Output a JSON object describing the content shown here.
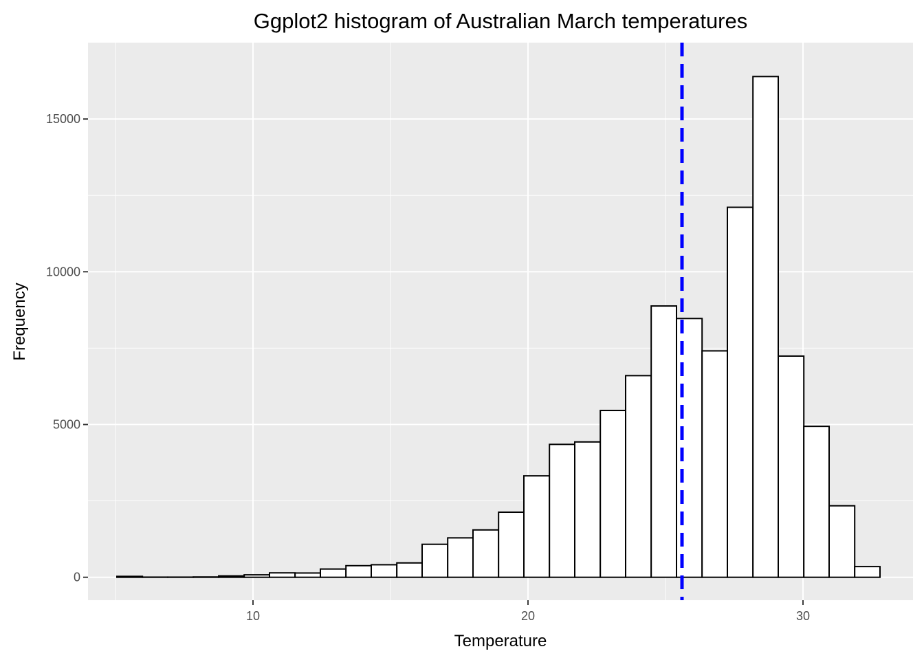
{
  "chart_data": {
    "type": "bar",
    "title": "Ggplot2 histogram of Australian March temperatures",
    "xlabel": "Temperature",
    "ylabel": "Frequency",
    "xlim": [
      4.0,
      34.0
    ],
    "ylim": [
      -750,
      17500
    ],
    "x_ticks": [
      10,
      20,
      30
    ],
    "y_ticks": [
      0,
      5000,
      10000,
      15000
    ],
    "x_tick_labels": [
      "10",
      "20",
      "30"
    ],
    "y_tick_labels": [
      "0",
      "5000",
      "10000",
      "15000"
    ],
    "bin_edges": [
      5.05,
      5.98,
      6.9,
      7.83,
      8.75,
      9.68,
      10.6,
      11.53,
      12.45,
      13.38,
      14.3,
      15.23,
      16.15,
      17.08,
      18.0,
      18.93,
      19.85,
      20.78,
      21.7,
      22.63,
      23.55,
      24.48,
      25.4,
      26.33,
      27.25,
      28.18,
      29.1,
      30.03,
      30.95,
      31.88,
      32.8
    ],
    "counts": [
      30,
      5,
      5,
      10,
      45,
      80,
      145,
      140,
      270,
      380,
      410,
      470,
      1080,
      1290,
      1550,
      2130,
      3320,
      4350,
      4430,
      5460,
      6600,
      8880,
      8470,
      7410,
      12110,
      16390,
      7240,
      4940,
      2340,
      350
    ],
    "mean_line": 25.6,
    "colors": {
      "panel_background": "#ebebeb",
      "grid": "#ffffff",
      "bar_fill": "#ffffff",
      "bar_outline": "#000000",
      "mean_line": "#0000ff"
    },
    "grid": true,
    "legend": "none"
  }
}
